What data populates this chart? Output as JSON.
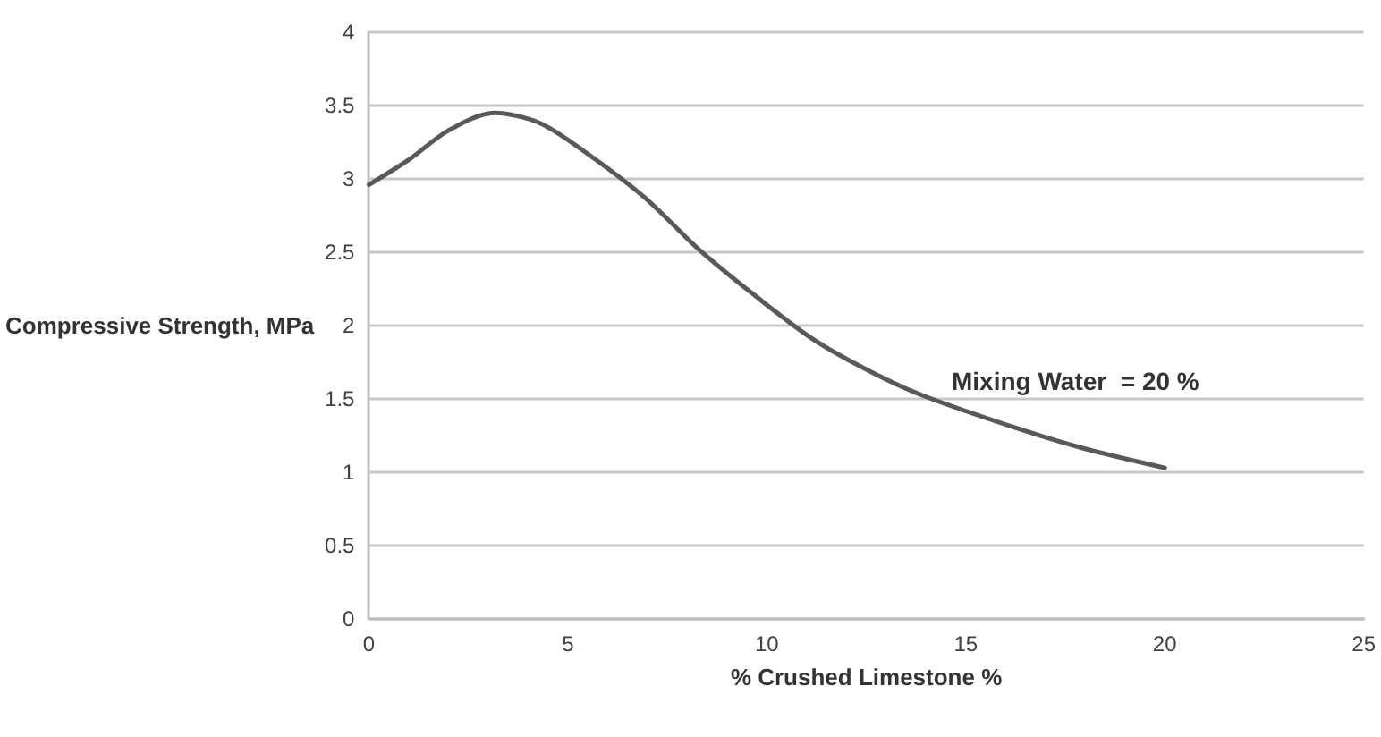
{
  "chart_data": {
    "type": "line",
    "xlabel": "% Crushed Limestone %",
    "ylabel": "Compressive Strength, MPa",
    "annotations": [
      "Mixing Water  = 20 %"
    ],
    "series": [
      {
        "color": "#595959",
        "x": [
          0,
          1,
          2,
          3.15,
          4.3,
          5.45,
          6.9,
          8.33,
          9.77,
          11.2,
          12.65,
          13.95,
          16.4,
          18,
          20
        ],
        "values": [
          2.96,
          3.13,
          3.33,
          3.45,
          3.38,
          3.18,
          2.88,
          2.51,
          2.19,
          1.9,
          1.68,
          1.52,
          1.29,
          1.16,
          1.03
        ]
      }
    ],
    "xlim": [
      0,
      25
    ],
    "xticks": [
      0,
      5,
      10,
      15,
      20,
      25
    ],
    "ylim": [
      0,
      4
    ],
    "yticks": [
      0,
      0.5,
      1,
      1.5,
      2,
      2.5,
      3,
      3.5,
      4
    ],
    "grid": "y",
    "marker": "none",
    "line_style": "solid"
  }
}
